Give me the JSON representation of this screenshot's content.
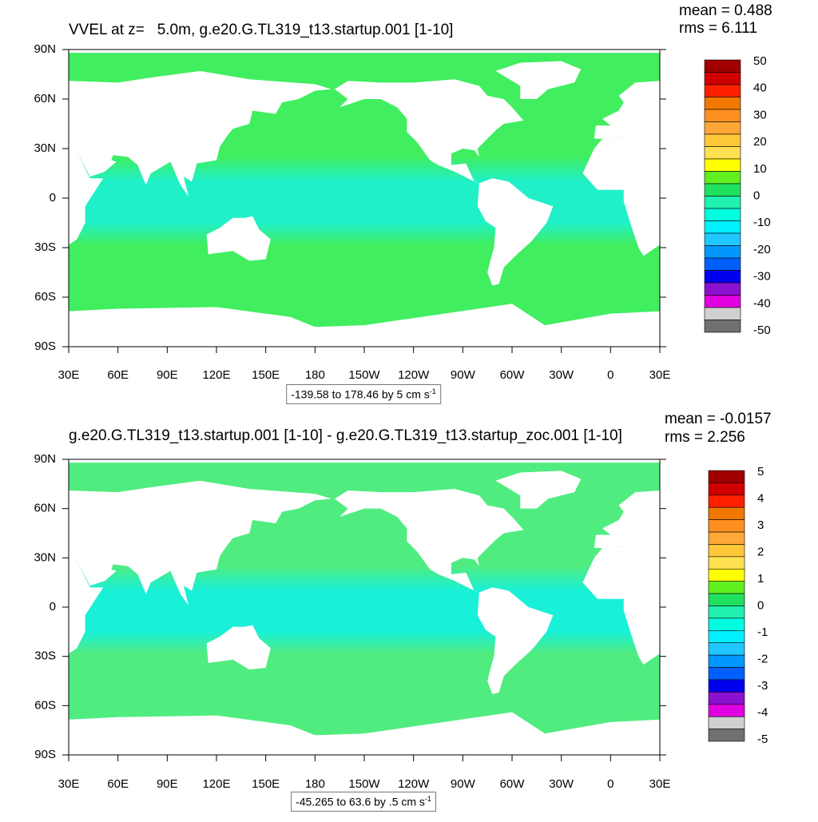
{
  "panels": [
    {
      "title": "VVEL at z=   5.0m, g.e20.G.TL319_t13.startup.001 [1-10]",
      "mean": "mean = 0.488",
      "rms": "rms = 6.111",
      "range": {
        "text": "-139.58 to 178.46 by 5 cm s",
        "exponent": "-1"
      },
      "colorbar_labels": [
        "50",
        "40",
        "30",
        "20",
        "10",
        "0",
        "-10",
        "-20",
        "-30",
        "-40",
        "-50"
      ]
    },
    {
      "title": "g.e20.G.TL319_t13.startup.001 [1-10] - g.e20.G.TL319_t13.startup_zoc.001 [1-10]",
      "mean": "mean = -0.0157",
      "rms": "rms = 2.256",
      "range": {
        "text": "-45.265 to 63.6 by .5 cm s",
        "exponent": "-1"
      },
      "colorbar_labels": [
        "5",
        "4",
        "3",
        "2",
        "1",
        "0",
        "-1",
        "-2",
        "-3",
        "-4",
        "-5"
      ]
    }
  ],
  "lat_labels": [
    "90N",
    "60N",
    "30N",
    "0",
    "30S",
    "60S",
    "90S"
  ],
  "lon_labels": [
    "30E",
    "60E",
    "90E",
    "120E",
    "150E",
    "180",
    "150W",
    "120W",
    "90W",
    "60W",
    "30W",
    "0",
    "30E"
  ],
  "colors": [
    "#a00000",
    "#d00000",
    "#ff2000",
    "#f07800",
    "#ff9020",
    "#ffa838",
    "#ffc838",
    "#ffe050",
    "#ffff00",
    "#60f020",
    "#20e060",
    "#20f0b0",
    "#00ffe0",
    "#00f0ff",
    "#20c8ff",
    "#0098ff",
    "#0060ff",
    "#0000f0",
    "#8c10d0",
    "#e000e0",
    "#d0d0d0",
    "#707070"
  ]
}
